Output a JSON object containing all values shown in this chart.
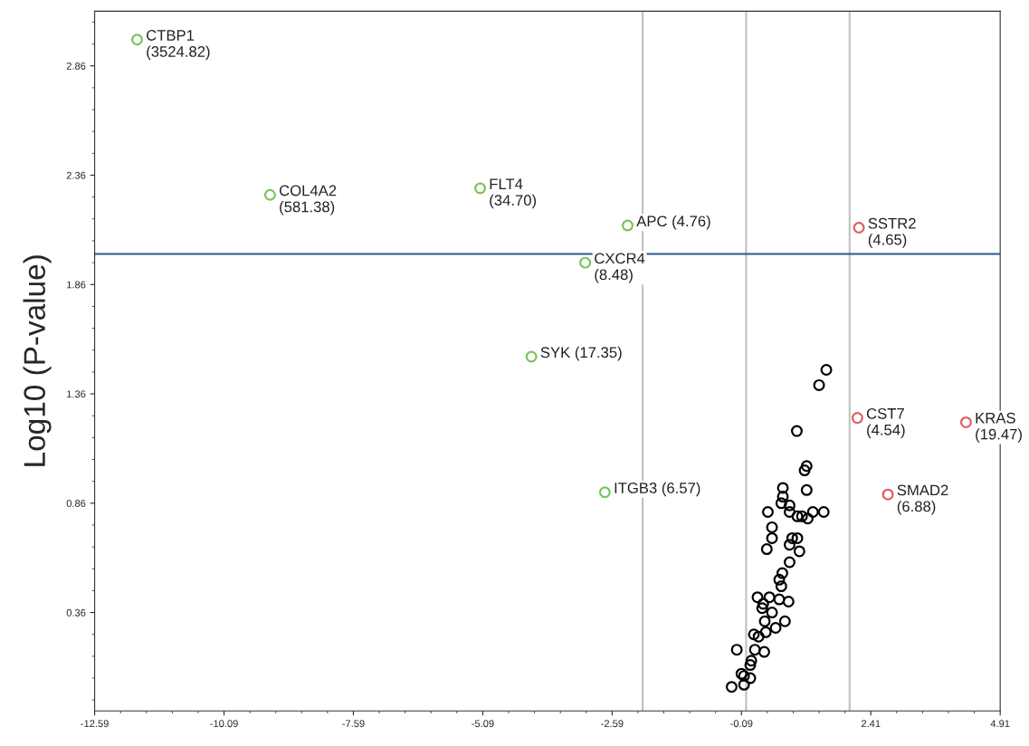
{
  "chart_data": {
    "type": "scatter",
    "ylabel": "Log10 (P-value)",
    "xlim": [
      -12.59,
      4.91
    ],
    "ylim": [
      -0.09,
      3.11
    ],
    "xticks": [
      -12.59,
      -10.09,
      -7.59,
      -5.09,
      -2.59,
      -0.09,
      2.41,
      4.91
    ],
    "yticks": [
      0.36,
      0.86,
      1.36,
      1.86,
      2.36,
      2.86
    ],
    "marker": "circle",
    "series": [
      {
        "color": "#7cc35a",
        "x": [
          -11.77,
          -9.2,
          -5.14,
          -2.29,
          -3.11,
          -4.15,
          -2.73
        ],
        "values": [
          2.98,
          2.27,
          2.3,
          2.13,
          1.96,
          1.53,
          0.91
        ]
      },
      {
        "color": "#e06060",
        "x": [
          2.18,
          2.15,
          4.25,
          2.74
        ],
        "values": [
          2.12,
          1.25,
          1.23,
          0.9
        ]
      },
      {
        "color": "#000000",
        "x": [
          1.55,
          1.41,
          0.98,
          1.17,
          1.13,
          1.17,
          0.71,
          0.71,
          0.68,
          0.84,
          0.42,
          0.84,
          0.99,
          1.08,
          1.19,
          1.29,
          1.5,
          0.5,
          0.5,
          0.89,
          0.99,
          0.84,
          0.4,
          1.03,
          0.84,
          0.7,
          0.64,
          0.68,
          0.22,
          0.45,
          0.64,
          0.82,
          0.33,
          0.31,
          0.5,
          0.36,
          0.75,
          0.57,
          0.38,
          0.15,
          0.24,
          -0.18,
          0.17,
          0.35,
          0.1,
          0.08,
          -0.09,
          -0.04,
          0.08,
          -0.04,
          -0.28
        ],
        "values": [
          1.47,
          1.4,
          1.19,
          1.03,
          1.01,
          0.92,
          0.93,
          0.89,
          0.86,
          0.85,
          0.82,
          0.82,
          0.8,
          0.8,
          0.79,
          0.82,
          0.82,
          0.75,
          0.7,
          0.7,
          0.7,
          0.67,
          0.65,
          0.64,
          0.59,
          0.54,
          0.51,
          0.48,
          0.43,
          0.43,
          0.42,
          0.41,
          0.4,
          0.38,
          0.36,
          0.32,
          0.32,
          0.29,
          0.27,
          0.26,
          0.25,
          0.19,
          0.19,
          0.18,
          0.14,
          0.12,
          0.08,
          0.07,
          0.06,
          0.03,
          0.02
        ]
      }
    ],
    "ref_lines": [
      {
        "axis": "x",
        "value": -2,
        "color": "#c0c0c0"
      },
      {
        "axis": "x",
        "value": 0,
        "color": "#c0c0c0"
      },
      {
        "axis": "x",
        "value": 2,
        "color": "#c0c0c0"
      },
      {
        "axis": "y",
        "value": 2.0,
        "color": "#2f5597"
      }
    ],
    "annotations": [
      {
        "text": "CTBP1\n(3524.82)",
        "x": -11.77,
        "y": 2.98
      },
      {
        "text": "COL4A2\n(581.38)",
        "x": -9.2,
        "y": 2.27
      },
      {
        "text": "FLT4\n(34.70)",
        "x": -5.14,
        "y": 2.3
      },
      {
        "text": "APC (4.76)",
        "x": -2.29,
        "y": 2.13
      },
      {
        "text": "CXCR4\n(8.48)",
        "x": -3.11,
        "y": 1.96
      },
      {
        "text": "SYK (17.35)",
        "x": -4.15,
        "y": 1.53
      },
      {
        "text": "ITGB3 (6.57)",
        "x": -2.73,
        "y": 0.91
      },
      {
        "text": "SSTR2\n(4.65)",
        "x": 2.18,
        "y": 2.12
      },
      {
        "text": "CST7\n(4.54)",
        "x": 2.15,
        "y": 1.25
      },
      {
        "text": "KRAS\n(19.47)",
        "x": 4.25,
        "y": 1.23
      },
      {
        "text": "SMAD2\n(6.88)",
        "x": 2.74,
        "y": 0.9
      }
    ]
  }
}
